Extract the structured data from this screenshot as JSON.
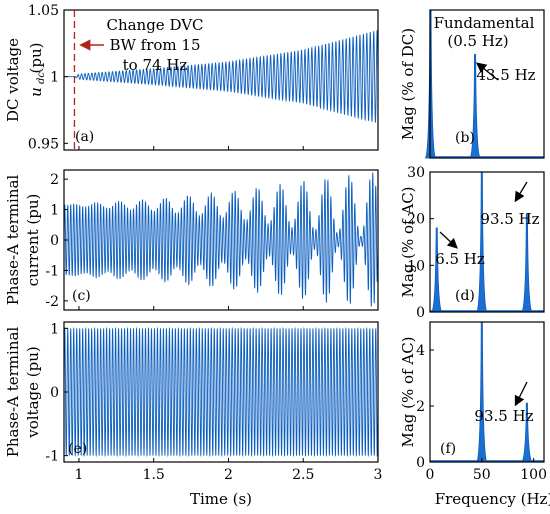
{
  "colors": {
    "signal": "#0d5fbf",
    "signal_fill": "#1b6fd0",
    "marker": "#b2231c",
    "axis": "#000000",
    "background": "#ffffff"
  },
  "chart_data": [
    {
      "id": "a",
      "type": "line",
      "panel_label": "(a)",
      "ylabel": "DC voltage",
      "ylabel_sym": "u",
      "ylabel_sub": "dc",
      "ylabel_unit": "(pu)",
      "xlim": [
        0.9,
        3.0
      ],
      "ylim": [
        0.945,
        1.05
      ],
      "yticks": [
        0.95,
        1,
        1.05
      ],
      "ytick_labels": [
        "0.95",
        "1",
        "1.05"
      ],
      "xticks": [
        1,
        1.5,
        2,
        2.5,
        3
      ],
      "envelope_t": [
        0.9,
        0.97,
        1.0,
        1.5,
        2.0,
        2.5,
        3.0
      ],
      "envelope_amp": [
        0.0,
        0.0,
        0.002,
        0.006,
        0.011,
        0.02,
        0.035
      ],
      "center": 1.0,
      "oscillation_hz": 43.5,
      "event_t": 0.97,
      "annotation": [
        "Change DVC",
        "BW from 15",
        "to 74 Hz"
      ]
    },
    {
      "id": "c",
      "type": "line",
      "panel_label": "(c)",
      "ylabel": [
        "Phase-A terminal",
        "current (pu)"
      ],
      "xlim": [
        0.9,
        3.0
      ],
      "ylim": [
        -2.3,
        2.3
      ],
      "yticks": [
        -2,
        -1,
        0,
        1,
        2
      ],
      "ytick_labels": [
        "-2",
        "-1",
        "0",
        "1",
        "2"
      ],
      "xticks": [
        1,
        1.5,
        2,
        2.5,
        3
      ],
      "base_amp": 1.15,
      "beat_amp_t": [
        0.9,
        1.0,
        1.5,
        2.0,
        2.5,
        3.0
      ],
      "beat_amp": [
        0.0,
        0.05,
        0.2,
        0.45,
        0.8,
        1.1
      ],
      "fundamental_hz": 50,
      "beat_hz": 6.5
    },
    {
      "id": "e",
      "type": "line",
      "panel_label": "(e)",
      "ylabel": [
        "Phase-A terminal",
        "voltage (pu)"
      ],
      "xlim": [
        0.9,
        3.0
      ],
      "ylim": [
        -1.1,
        1.1
      ],
      "yticks": [
        -1,
        0,
        1
      ],
      "ytick_labels": [
        "-1",
        "0",
        "1"
      ],
      "xticks": [
        1,
        1.5,
        2,
        2.5,
        3
      ],
      "amplitude": 1.0,
      "fundamental_hz": 50
    },
    {
      "id": "b",
      "type": "bar",
      "panel_label": "(b)",
      "ylabel": "Mag (% of DC)",
      "xlim": [
        0,
        110
      ],
      "ylim": [
        0,
        0.2
      ],
      "peaks": [
        {
          "freq": 0.5,
          "mag": 1.0,
          "label": "Fundamental",
          "label2": "(0.5 Hz)"
        },
        {
          "freq": 43.5,
          "mag": 0.14,
          "label": "43.5 Hz"
        }
      ]
    },
    {
      "id": "d",
      "type": "bar",
      "panel_label": "(d)",
      "ylabel": "Mag (% of AC)",
      "xlim": [
        0,
        110
      ],
      "ylim": [
        0,
        30
      ],
      "yticks": [
        0,
        10,
        20,
        30
      ],
      "ytick_labels": [
        "0",
        "10",
        "20",
        "30"
      ],
      "peaks": [
        {
          "freq": 6.5,
          "mag": 18,
          "label": "6.5 Hz"
        },
        {
          "freq": 50,
          "mag": 100
        },
        {
          "freq": 93.5,
          "mag": 21,
          "label": "93.5 Hz"
        }
      ]
    },
    {
      "id": "f",
      "type": "bar",
      "panel_label": "(f)",
      "ylabel": "Mag (% of AC)",
      "xlim": [
        0,
        110
      ],
      "ylim": [
        0,
        5
      ],
      "yticks": [
        0,
        2,
        4
      ],
      "ytick_labels": [
        "0",
        "2",
        "4"
      ],
      "xticks": [
        0,
        50,
        100
      ],
      "xtick_labels": [
        "0",
        "50",
        "100"
      ],
      "xlabel": "Frequency (Hz)",
      "peaks": [
        {
          "freq": 50,
          "mag": 100
        },
        {
          "freq": 93.5,
          "mag": 2.1,
          "label": "93.5 Hz"
        }
      ]
    }
  ],
  "shared": {
    "time_xlabel": "Time (s)",
    "time_tick_labels": [
      "1",
      "1.5",
      "2",
      "2.5",
      "3"
    ]
  }
}
